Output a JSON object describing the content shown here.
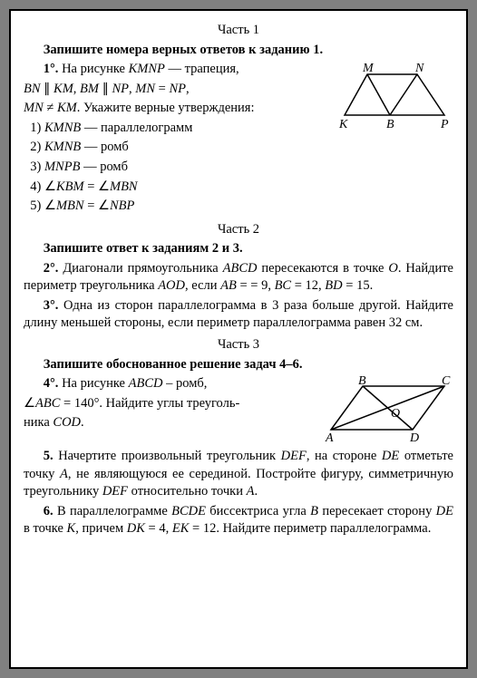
{
  "part1": {
    "title": "Часть 1",
    "instruction": "Запишите номера верных ответов к заданию 1.",
    "q1": {
      "num": "1°.",
      "line1": "На рисунке <em class='it'>KMNP</em> — трапеция,",
      "line2": "<em class='it'>BN</em> ∥ <em class='it'>KM</em>, <em class='it'>BM</em> ∥ <em class='it'>NP</em>, <em class='it'>MN</em> = <em class='it'>NP</em>,",
      "line3": "<em class='it'>MN</em> ≠ <em class='it'>KM</em>. Укажите верные утверждения:",
      "options": [
        "1)  <em class='it'>KMNB</em> — параллелограмм",
        "2)  <em class='it'>KMNB</em> — ромб",
        "3)  <em class='it'>MNPB</em> — ромб",
        "4)  ∠<em class='it'>KBM</em> = ∠<em class='it'>MBN</em>",
        "5)  ∠<em class='it'>MBN</em> = ∠<em class='it'>NBP</em>"
      ]
    },
    "fig1": {
      "labels": {
        "M": "M",
        "N": "N",
        "K": "K",
        "B": "B",
        "P": "P"
      },
      "stroke": "#000000",
      "fill": "#ffffff"
    }
  },
  "part2": {
    "title": "Часть 2",
    "instruction": "Запишите ответ к заданиям 2 и 3.",
    "q2": "<strong>2°.</strong> Диагонали прямоугольника <em class='it'>ABCD</em> пересекаются в точке <em class='it'>O</em>. Найдите периметр треугольника <em class='it'>AOD</em>, если <em class='it'>AB</em> = = 9, <em class='it'>BC</em> = 12, <em class='it'>BD</em> = 15.",
    "q3": "<strong>3°.</strong> Одна из сторон параллелограмма в 3 раза больше другой. Найдите длину меньшей стороны, если периметр параллелограмма равен 32 см."
  },
  "part3": {
    "title": "Часть 3",
    "instruction": "Запишите обоснованное решение задач 4–6.",
    "q4": {
      "num": "4°.",
      "line1": "На рисунке <em class='it'>ABCD</em> – ромб,",
      "line2": "∠<em class='it'>ABC</em> = 140°. Найдите углы треуголь-",
      "line3": "ника <em class='it'>COD</em>."
    },
    "fig2": {
      "labels": {
        "A": "A",
        "B": "B",
        "C": "C",
        "D": "D",
        "O": "O"
      },
      "stroke": "#000000"
    },
    "q5": "<strong>5.</strong> Начертите произвольный треугольник <em class='it'>DEF</em>, на стороне <em class='it'>DE</em> отметьте точку <em class='it'>A</em>, не являющуюся ее серединой. Постройте фигуру, симметричную треугольнику <em class='it'>DEF</em> относительно точки <em class='it'>A</em>.",
    "q6": "<strong>6.</strong> В параллелограмме <em class='it'>BCDE</em> биссектриса угла <em class='it'>B</em> пересекает сторону <em class='it'>DE</em> в точке <em class='it'>K</em>, причем <em class='it'>DK</em> = 4, <em class='it'>EK</em> = 12. Найдите периметр параллелограмма."
  }
}
